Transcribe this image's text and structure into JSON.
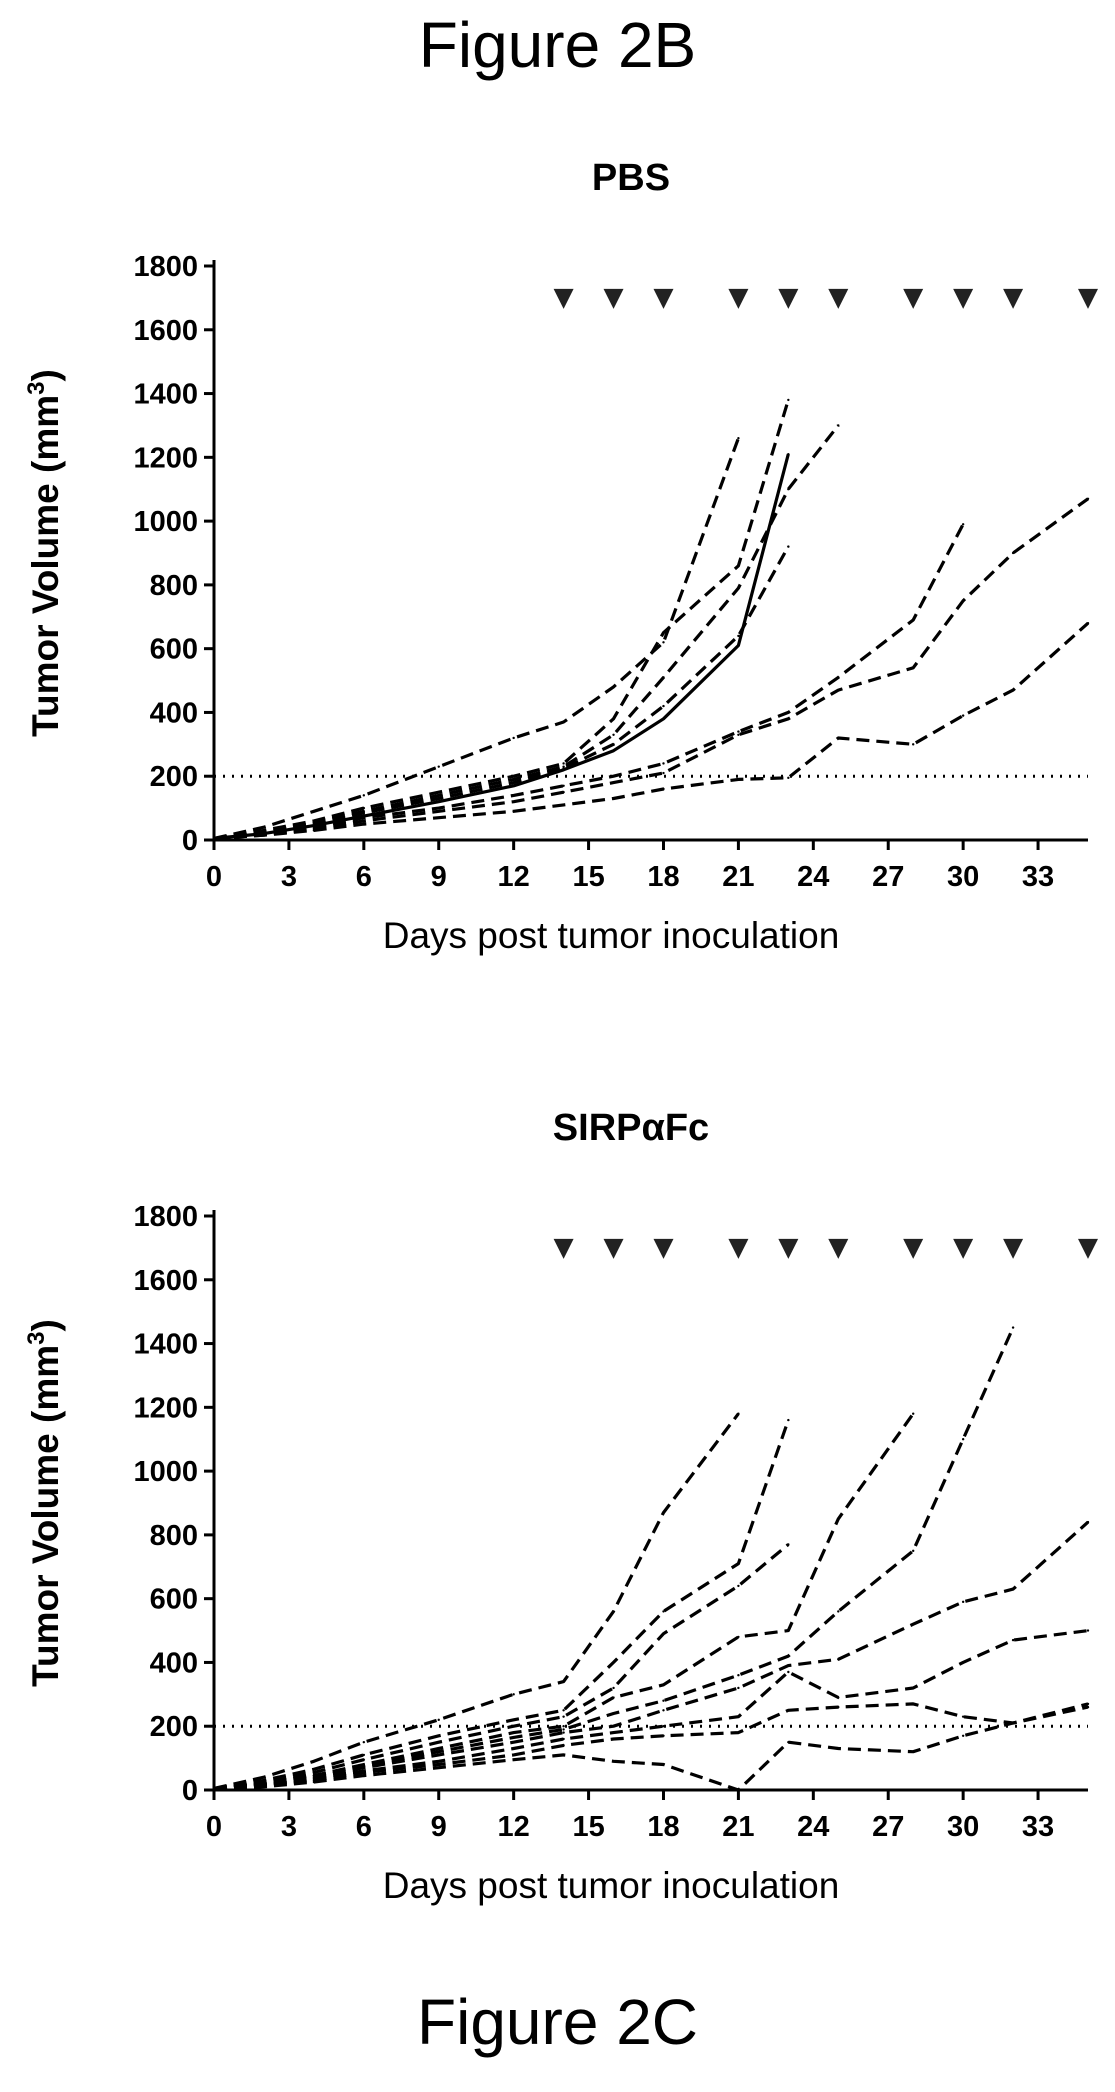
{
  "figure_top_label": "Figure 2B",
  "figure_bottom_label": "Figure 2C",
  "colors": {
    "line": "#000000",
    "background": "#ffffff"
  },
  "chart_data": [
    {
      "type": "line",
      "title": "PBS",
      "xlabel": "Days post tumor inoculation",
      "ylabel": "Tumor Volume (mm3)",
      "ylabel_prefix": "Tumor Volume (mm",
      "ylabel_sup": "3",
      "ylabel_suffix": ")",
      "xlim": [
        0,
        35
      ],
      "ylim": [
        0,
        1800
      ],
      "xticks": [
        0,
        3,
        6,
        9,
        12,
        15,
        18,
        21,
        24,
        27,
        30,
        33
      ],
      "yticks": [
        0,
        200,
        400,
        600,
        800,
        1000,
        1200,
        1400,
        1600,
        1800
      ],
      "threshold": 200,
      "dosing_days": [
        14,
        16,
        18,
        21,
        23,
        25,
        28,
        30,
        32,
        35
      ],
      "dosing_level": 1700,
      "series": [
        {
          "x": [
            0,
            2,
            4,
            6,
            9,
            12,
            14,
            16,
            18,
            21
          ],
          "y": [
            5,
            40,
            90,
            140,
            230,
            320,
            370,
            480,
            620,
            1260
          ]
        },
        {
          "x": [
            0,
            2,
            4,
            6,
            9,
            12,
            14,
            16,
            18,
            21,
            23
          ],
          "y": [
            5,
            30,
            60,
            100,
            150,
            200,
            240,
            380,
            650,
            860,
            1380
          ]
        },
        {
          "x": [
            0,
            2,
            4,
            6,
            9,
            12,
            14,
            16,
            18,
            21,
            23,
            25
          ],
          "y": [
            5,
            25,
            55,
            90,
            140,
            190,
            230,
            330,
            510,
            790,
            1100,
            1300
          ]
        },
        {
          "x": [
            0,
            2,
            4,
            6,
            9,
            12,
            14,
            16,
            18,
            21,
            23
          ],
          "y": [
            5,
            20,
            45,
            75,
            120,
            170,
            220,
            280,
            380,
            610,
            1210
          ],
          "style": "solid"
        },
        {
          "x": [
            0,
            2,
            4,
            6,
            9,
            12,
            14,
            16,
            18,
            21,
            23
          ],
          "y": [
            5,
            25,
            50,
            85,
            130,
            180,
            225,
            300,
            420,
            640,
            920
          ]
        },
        {
          "x": [
            0,
            2,
            4,
            6,
            9,
            12,
            14,
            16,
            18,
            21,
            23,
            25,
            28,
            30
          ],
          "y": [
            5,
            20,
            40,
            70,
            100,
            140,
            170,
            200,
            240,
            340,
            400,
            510,
            690,
            990
          ]
        },
        {
          "x": [
            0,
            2,
            4,
            6,
            9,
            12,
            14,
            16,
            18,
            21,
            23,
            25,
            28,
            30,
            32,
            35
          ],
          "y": [
            5,
            15,
            35,
            60,
            90,
            120,
            150,
            180,
            210,
            330,
            380,
            470,
            540,
            750,
            900,
            1070
          ]
        },
        {
          "x": [
            0,
            2,
            4,
            6,
            9,
            12,
            14,
            16,
            18,
            21,
            23,
            25,
            28,
            30,
            32,
            35
          ],
          "y": [
            5,
            15,
            30,
            50,
            70,
            90,
            110,
            130,
            160,
            190,
            195,
            320,
            300,
            390,
            470,
            680
          ]
        }
      ]
    },
    {
      "type": "line",
      "title": "SIRPαFc",
      "xlabel": "Days post tumor inoculation",
      "ylabel": "Tumor Volume (mm3)",
      "ylabel_prefix": "Tumor Volume (mm",
      "ylabel_sup": "3",
      "ylabel_suffix": ")",
      "xlim": [
        0,
        35
      ],
      "ylim": [
        0,
        1800
      ],
      "xticks": [
        0,
        3,
        6,
        9,
        12,
        15,
        18,
        21,
        24,
        27,
        30,
        33
      ],
      "yticks": [
        0,
        200,
        400,
        600,
        800,
        1000,
        1200,
        1400,
        1600,
        1800
      ],
      "threshold": 200,
      "dosing_days": [
        14,
        16,
        18,
        21,
        23,
        25,
        28,
        30,
        32,
        35
      ],
      "dosing_level": 1700,
      "series": [
        {
          "x": [
            0,
            2,
            4,
            6,
            9,
            12,
            14,
            16,
            18,
            21
          ],
          "y": [
            5,
            40,
            90,
            150,
            220,
            300,
            340,
            560,
            870,
            1180
          ]
        },
        {
          "x": [
            0,
            2,
            4,
            6,
            9,
            12,
            14,
            16,
            18,
            21,
            23
          ],
          "y": [
            5,
            30,
            65,
            110,
            170,
            220,
            250,
            400,
            560,
            710,
            1160
          ]
        },
        {
          "x": [
            0,
            2,
            4,
            6,
            9,
            12,
            14,
            16,
            18,
            21,
            23
          ],
          "y": [
            5,
            25,
            55,
            95,
            150,
            200,
            230,
            320,
            490,
            640,
            770
          ]
        },
        {
          "x": [
            0,
            2,
            4,
            6,
            9,
            12,
            14,
            16,
            18,
            21,
            23,
            25,
            28
          ],
          "y": [
            5,
            20,
            45,
            80,
            130,
            180,
            200,
            290,
            330,
            480,
            500,
            850,
            1180
          ]
        },
        {
          "x": [
            0,
            2,
            4,
            6,
            9,
            12,
            14,
            16,
            18,
            21,
            23,
            25,
            28,
            30,
            32
          ],
          "y": [
            5,
            20,
            45,
            75,
            120,
            165,
            190,
            240,
            280,
            360,
            420,
            560,
            750,
            1100,
            1450
          ]
        },
        {
          "x": [
            0,
            2,
            4,
            6,
            9,
            12,
            14,
            16,
            18,
            21,
            23,
            25,
            28,
            30,
            32,
            35
          ],
          "y": [
            5,
            15,
            40,
            70,
            110,
            150,
            180,
            200,
            250,
            320,
            390,
            410,
            520,
            590,
            630,
            840
          ]
        },
        {
          "x": [
            0,
            2,
            4,
            6,
            9,
            12,
            14,
            16,
            18,
            21,
            23,
            25,
            28,
            30,
            32,
            35
          ],
          "y": [
            5,
            15,
            35,
            60,
            90,
            130,
            160,
            180,
            200,
            230,
            370,
            290,
            320,
            400,
            470,
            500
          ]
        },
        {
          "x": [
            0,
            2,
            4,
            6,
            9,
            12,
            14,
            16,
            18,
            21,
            23,
            25,
            28,
            30,
            32,
            35
          ],
          "y": [
            5,
            15,
            30,
            55,
            80,
            110,
            140,
            160,
            170,
            180,
            250,
            260,
            270,
            230,
            210,
            270
          ]
        },
        {
          "x": [
            0,
            2,
            4,
            6,
            9,
            12,
            14,
            16,
            18,
            21,
            23,
            25,
            28,
            30,
            32,
            35
          ],
          "y": [
            5,
            10,
            25,
            45,
            70,
            95,
            110,
            90,
            80,
            0,
            150,
            130,
            120,
            170,
            210,
            260
          ]
        }
      ]
    }
  ]
}
